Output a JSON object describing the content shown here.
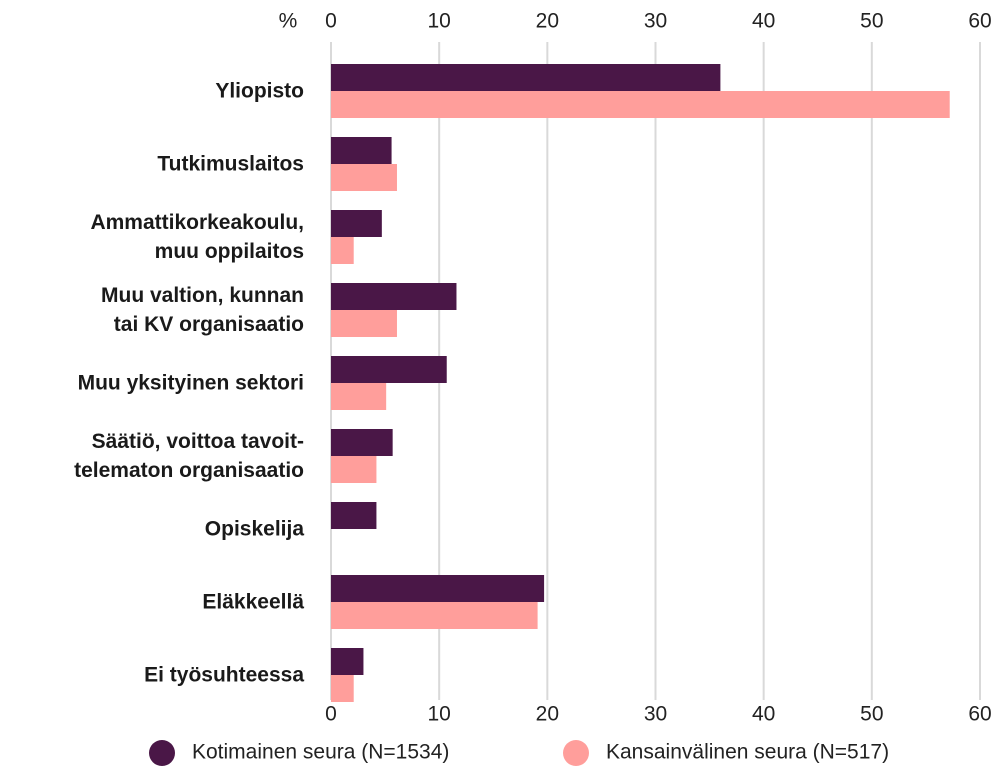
{
  "chart_data": {
    "type": "barh",
    "xlabel": "%",
    "categories": [
      "Yliopisto",
      "Tutkimuslaitos",
      "Ammattikorkeakoulu,\nmuu oppilaitos",
      "Muu valtion, kunnan\ntai KV organisaatio",
      "Muu yksityinen sektori",
      "Säätiö, voittoa tavoit-\ntelematon organisaatio",
      "Opiskelija",
      "Eläkkeellä",
      "Ei työsuhteessa"
    ],
    "series": [
      {
        "name": "Kotimainen seura (N=1534)",
        "color": "#4a1747",
        "values": [
          36,
          5.6,
          4.7,
          11.6,
          10.7,
          5.7,
          4.2,
          19.7,
          3.0
        ]
      },
      {
        "name": "Kansainvälinen seura (N=517)",
        "color": "#ff9e9b",
        "values": [
          57.2,
          6.1,
          2.1,
          6.1,
          5.1,
          4.2,
          null,
          19.1,
          2.1
        ]
      }
    ],
    "xlim": [
      0,
      60
    ],
    "xticks": [
      0,
      10,
      20,
      30,
      40,
      50,
      60
    ],
    "grid": true,
    "legend": "bottom"
  }
}
